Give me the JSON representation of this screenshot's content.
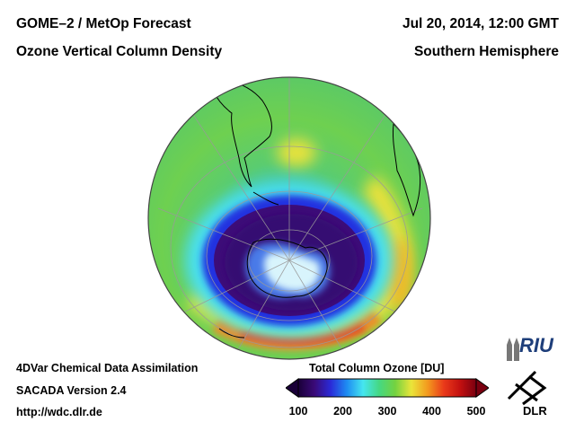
{
  "header": {
    "title_line1": "GOME–2 / MetOp Forecast",
    "title_line2": "Ozone Vertical Column Density",
    "date": "Jul 20, 2014, 12:00 GMT",
    "region": "Southern Hemisphere"
  },
  "footer": {
    "method": "4DVar Chemical Data Assimilation",
    "version": "SACADA Version 2.4",
    "url": "http://wdc.dlr.de"
  },
  "colorbar": {
    "title": "Total Column Ozone [DU]",
    "ticks": [
      "100",
      "200",
      "300",
      "400",
      "500"
    ],
    "range": [
      100,
      500
    ],
    "colors": [
      "#1a0038",
      "#3a0a78",
      "#2a2ad8",
      "#1e8cf2",
      "#45e6f0",
      "#45d882",
      "#74d240",
      "#eae53a",
      "#f39a1e",
      "#ea3a1a",
      "#c31010",
      "#7a0010"
    ]
  },
  "logos": {
    "riu": "RIU",
    "dlr": "DLR"
  },
  "map": {
    "projection": "orthographic, south polar",
    "ozone_hole_value_du": 130,
    "ring_value_du": 370
  }
}
